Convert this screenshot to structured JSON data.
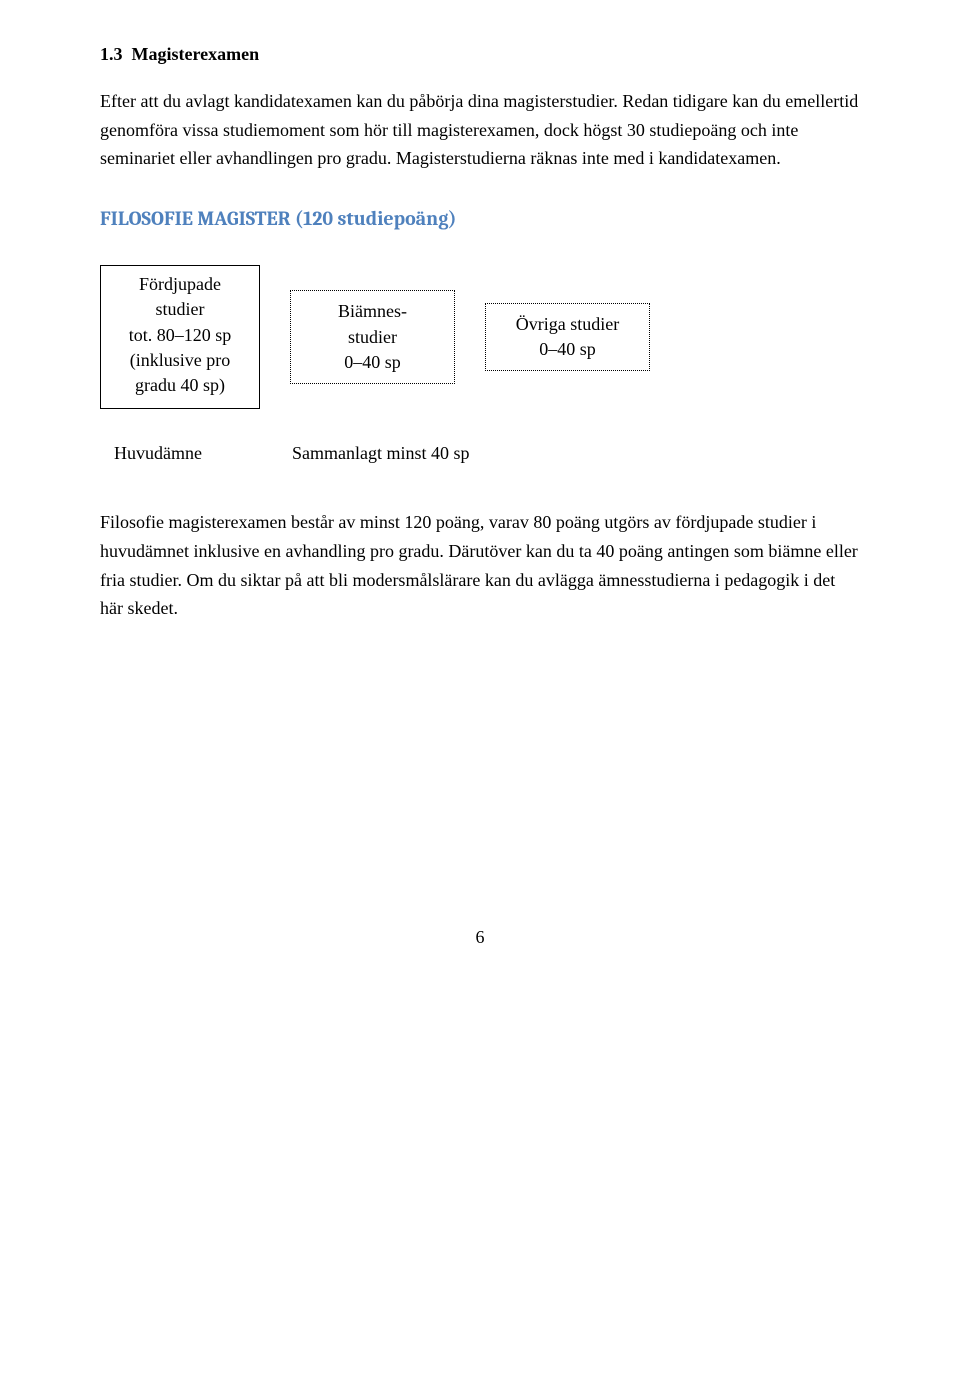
{
  "section": {
    "number": "1.3",
    "title": "Magisterexamen"
  },
  "para1": "Efter att du avlagt kandidatexamen kan du påbörja dina magisterstudier. Redan tidigare kan du emellertid genomföra vissa studiemoment som hör till magisterexamen, dock högst 30 studiepoäng och inte seminariet eller avhandlingen pro gradu. Magisterstudierna räknas inte med i kandidatexamen.",
  "blue_heading": "FILOSOFIE MAGISTER (120 studiepoäng)",
  "diagram": {
    "box1": {
      "line1": "Fördjupade",
      "line2": "studier",
      "line3": "tot. 80–120 sp",
      "line4": "(inklusive pro",
      "line5": "gradu 40 sp)"
    },
    "box2": {
      "line1": "Biämnes-",
      "line2": "studier",
      "line3": "0–40 sp"
    },
    "box3": {
      "line1": "Övriga studier",
      "line2": "0–40 sp"
    },
    "summary_left": "Huvudämne",
    "summary_right": "Sammanlagt minst 40 sp"
  },
  "para2": "Filosofie magisterexamen består av minst 120 poäng, varav 80 poäng utgörs av fördjupade studier i huvudämnet inklusive en avhandling pro gradu. Därutöver kan du ta 40 poäng antingen som biämne eller fria studier. Om du siktar på att bli modersmålslärare kan du avlägga ämnesstudierna i pedagogik i det här skedet.",
  "page_number": "6",
  "colors": {
    "heading_blue": "#4f81bd",
    "text": "#000000",
    "background": "#ffffff"
  }
}
